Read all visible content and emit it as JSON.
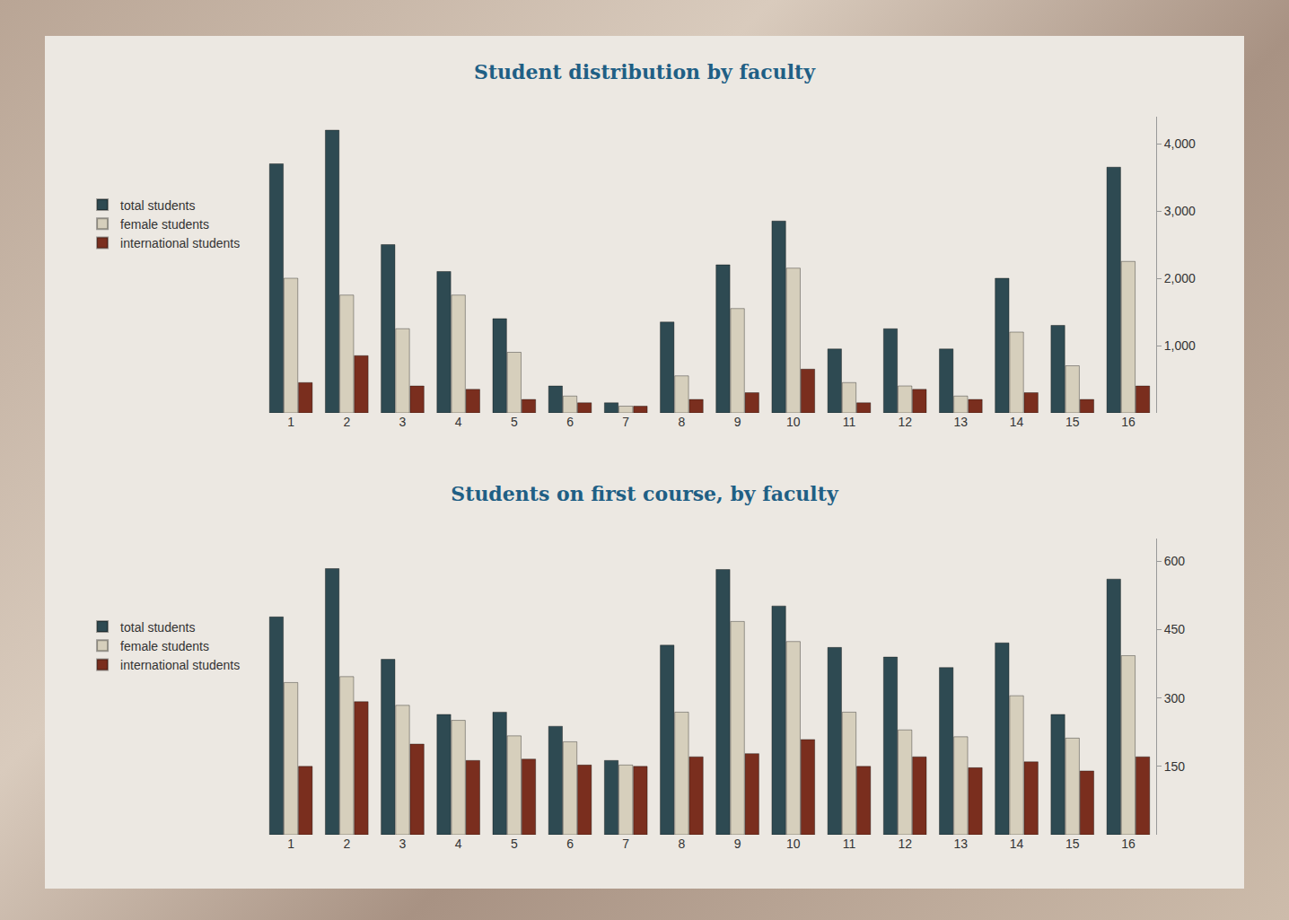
{
  "chart_data": [
    {
      "type": "bar",
      "title": "Student distribution by faculty",
      "categories": [
        "1",
        "2",
        "3",
        "4",
        "5",
        "6",
        "7",
        "8",
        "9",
        "10",
        "11",
        "12",
        "13",
        "14",
        "15",
        "16"
      ],
      "series": [
        {
          "name": "total students",
          "color": "#2e4a52",
          "values": [
            3700,
            4200,
            2500,
            2100,
            1400,
            400,
            150,
            1350,
            2200,
            2850,
            950,
            1250,
            950,
            2000,
            1300,
            3650
          ]
        },
        {
          "name": "female students",
          "color": "#d6cfbc",
          "values": [
            2000,
            1750,
            1250,
            1750,
            900,
            250,
            100,
            550,
            1550,
            2150,
            450,
            400,
            250,
            1200,
            700,
            2250
          ]
        },
        {
          "name": "international students",
          "color": "#7a2e1e",
          "values": [
            450,
            850,
            400,
            350,
            200,
            150,
            100,
            200,
            300,
            650,
            150,
            350,
            200,
            300,
            200,
            400
          ]
        }
      ],
      "ylim": [
        0,
        4400
      ],
      "yticks": [
        {
          "value": 1000,
          "label": "1,000"
        },
        {
          "value": 2000,
          "label": "2,000"
        },
        {
          "value": 3000,
          "label": "3,000"
        },
        {
          "value": 4000,
          "label": "4,000"
        }
      ],
      "grid": false,
      "legend": "left"
    },
    {
      "type": "bar",
      "title": "Students on first course, by faculty",
      "categories": [
        "1",
        "2",
        "3",
        "4",
        "5",
        "6",
        "7",
        "8",
        "9",
        "10",
        "11",
        "12",
        "13",
        "14",
        "15",
        "16"
      ],
      "series": [
        {
          "name": "total students",
          "color": "#2e4a52",
          "values": [
            478,
            584,
            385,
            264,
            269,
            238,
            163,
            416,
            582,
            502,
            411,
            390,
            367,
            421,
            264,
            561
          ]
        },
        {
          "name": "female students",
          "color": "#d6cfbc",
          "values": [
            334,
            347,
            284,
            251,
            217,
            204,
            153,
            269,
            468,
            424,
            269,
            230,
            215,
            305,
            212,
            393
          ]
        },
        {
          "name": "international students",
          "color": "#7a2e1e",
          "values": [
            150,
            292,
            199,
            163,
            166,
            153,
            150,
            171,
            178,
            209,
            150,
            171,
            147,
            160,
            140,
            171
          ]
        }
      ],
      "ylim": [
        0,
        650
      ],
      "yticks": [
        150,
        300,
        450,
        600
      ],
      "grid": false,
      "legend": "left"
    }
  ]
}
